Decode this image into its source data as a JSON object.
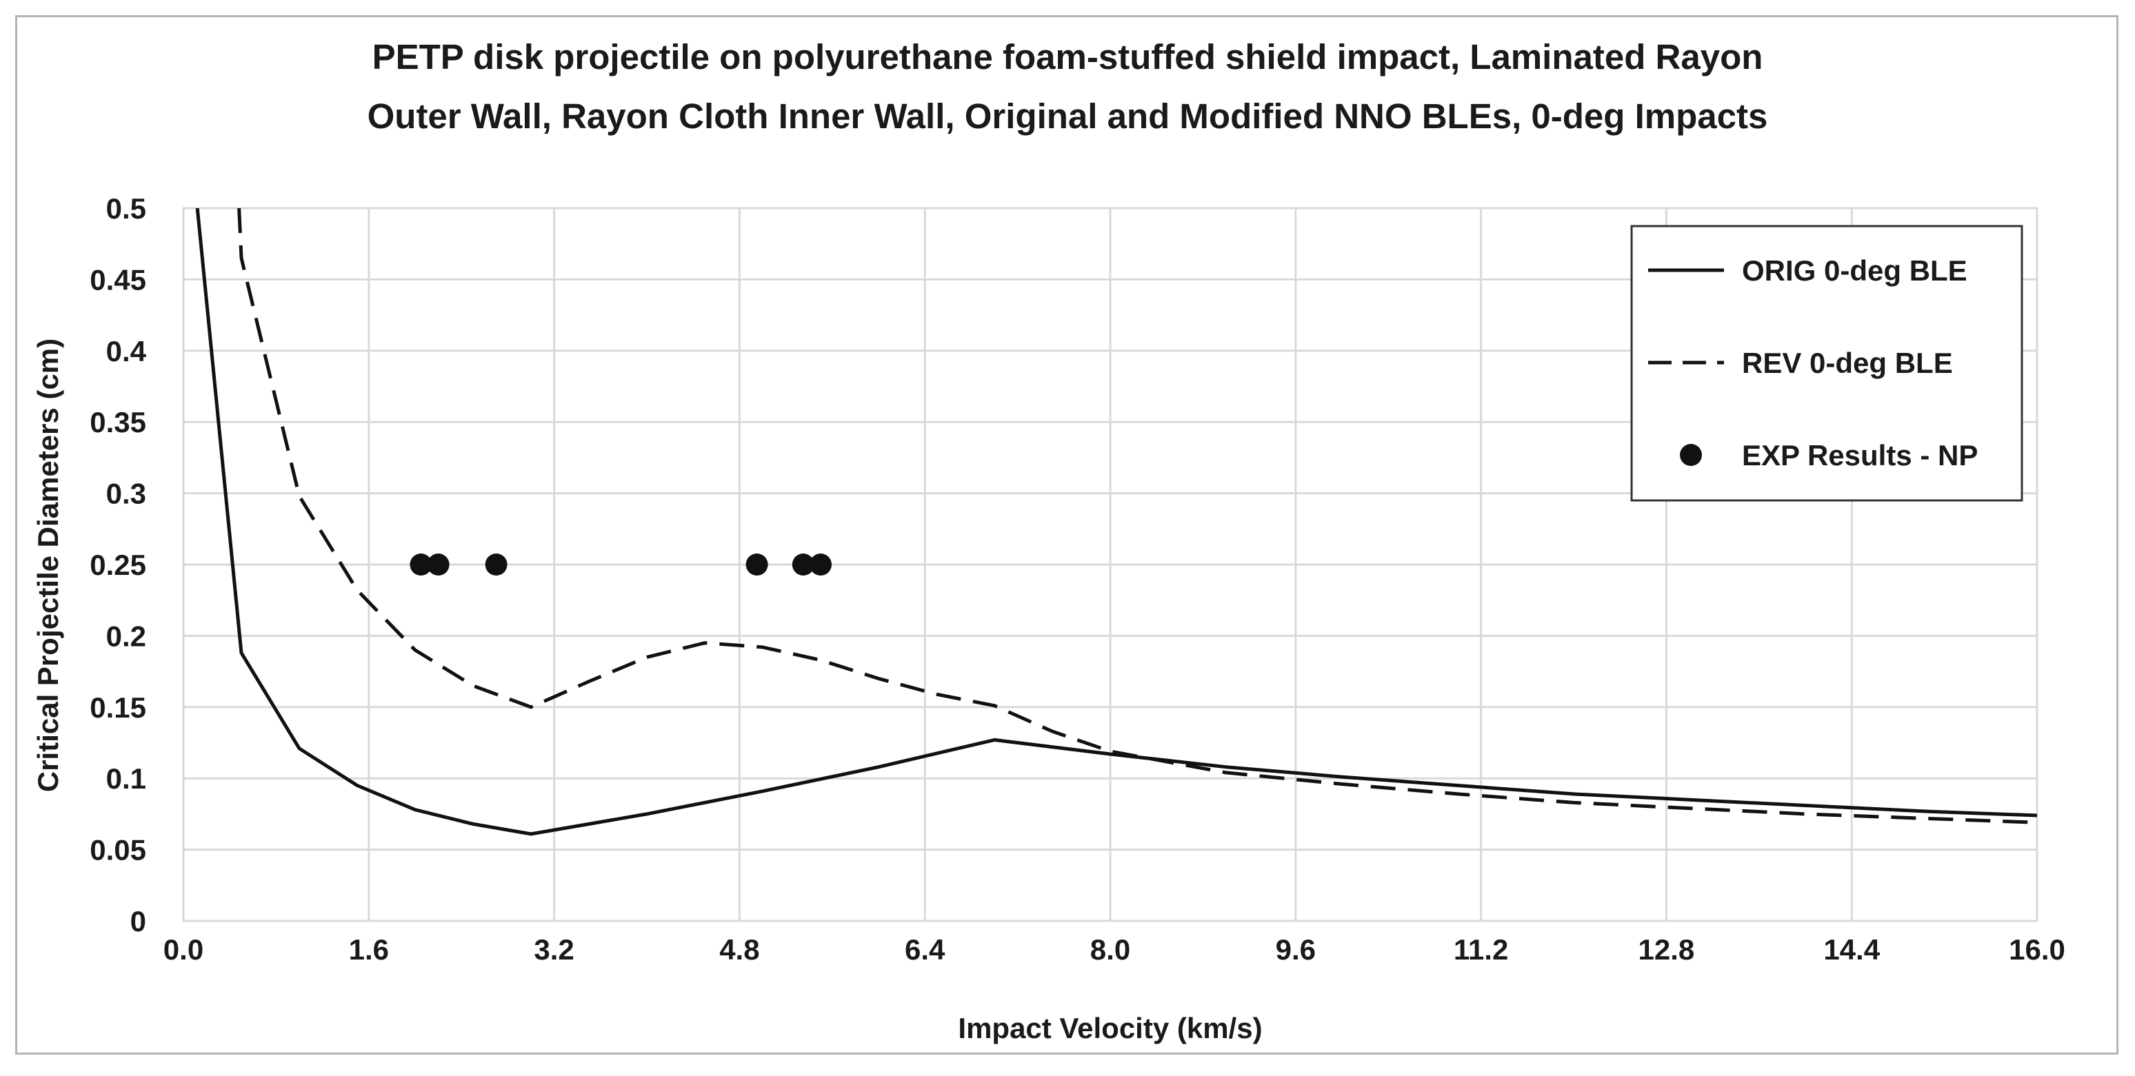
{
  "chart_data": {
    "type": "line",
    "title_lines": [
      "PETP disk projectile on polyurethane foam-stuffed shield impact, Laminated Rayon",
      "Outer Wall, Rayon Cloth Inner Wall, Original and Modified NNO BLEs, 0-deg Impacts"
    ],
    "xlabel": "Impact Velocity (km/s)",
    "ylabel": "Critical Projectile Diameters (cm)",
    "xlim": [
      0,
      16
    ],
    "ylim": [
      0,
      0.5
    ],
    "x_ticks": [
      "0.0",
      "1.6",
      "3.2",
      "4.8",
      "6.4",
      "8.0",
      "9.6",
      "11.2",
      "12.8",
      "14.4",
      "16.0"
    ],
    "y_ticks": [
      "0",
      "0.05",
      "0.1",
      "0.15",
      "0.2",
      "0.25",
      "0.3",
      "0.35",
      "0.4",
      "0.45",
      "0.5"
    ],
    "grid": true,
    "legend_position": "top-right",
    "series": [
      {
        "name": "ORIG 0-deg BLE",
        "style": "solid",
        "x": [
          0.12,
          0.5,
          1.0,
          1.5,
          2.0,
          2.5,
          3.0,
          4.0,
          5.0,
          6.0,
          7.0,
          8.0,
          9.0,
          10.0,
          11.0,
          12.0,
          13.0,
          14.0,
          15.0,
          16.0
        ],
        "y": [
          0.5,
          0.188,
          0.121,
          0.095,
          0.078,
          0.068,
          0.061,
          0.075,
          0.091,
          0.108,
          0.127,
          0.117,
          0.108,
          0.101,
          0.095,
          0.089,
          0.085,
          0.081,
          0.077,
          0.074
        ]
      },
      {
        "name": "REV 0-deg BLE",
        "style": "dashed",
        "x": [
          0.48,
          0.5,
          1.0,
          1.5,
          2.0,
          2.5,
          3.0,
          3.5,
          4.0,
          4.5,
          5.0,
          5.5,
          6.0,
          6.5,
          7.0,
          7.5,
          8.0,
          9.0,
          10.0,
          11.0,
          12.0,
          13.0,
          14.0,
          15.0,
          16.0
        ],
        "y": [
          0.5,
          0.465,
          0.298,
          0.232,
          0.19,
          0.165,
          0.15,
          0.168,
          0.185,
          0.195,
          0.192,
          0.183,
          0.17,
          0.159,
          0.151,
          0.133,
          0.119,
          0.104,
          0.096,
          0.089,
          0.083,
          0.079,
          0.075,
          0.072,
          0.069
        ]
      },
      {
        "name": "EXP Results - NP",
        "style": "markers",
        "x": [
          2.05,
          2.2,
          2.7,
          4.95,
          5.35,
          5.5
        ],
        "y": [
          0.25,
          0.25,
          0.25,
          0.25,
          0.25,
          0.25
        ]
      }
    ]
  }
}
